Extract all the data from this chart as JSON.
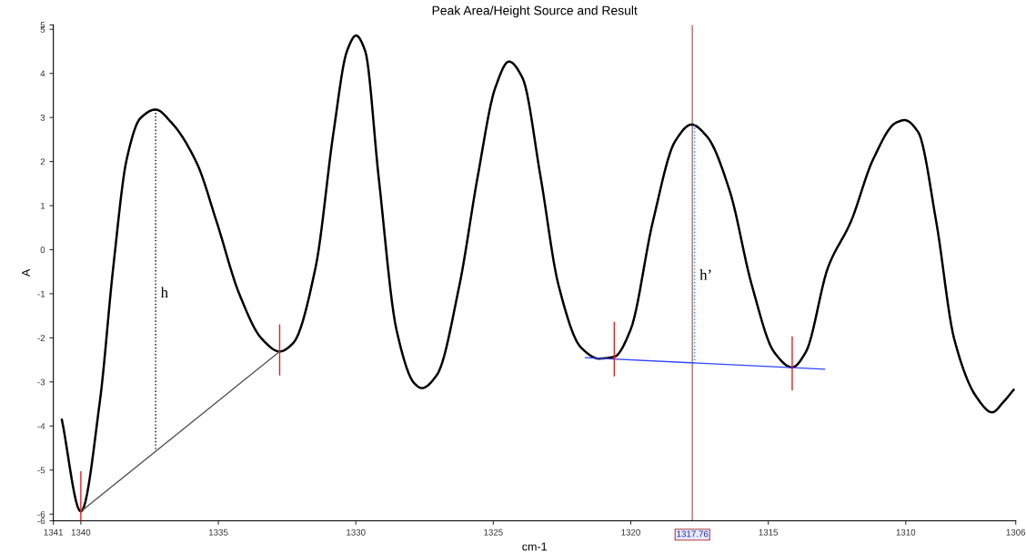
{
  "chart_data": {
    "type": "line",
    "title": "Peak Area/Height Source and Result",
    "xlabel": "cm-1",
    "ylabel": "A",
    "xlim": [
      1341,
      1306
    ],
    "xticks": [
      1341,
      1340,
      1335,
      1330,
      1325,
      1320,
      1315,
      1310,
      1306
    ],
    "ylim": [
      -6.15,
      5.1
    ],
    "yticks": [
      {
        "value": -6.15,
        "label": "-6"
      },
      -6,
      -5,
      -4,
      -3,
      -2,
      -1,
      0,
      1,
      2,
      3,
      4,
      5,
      {
        "value": 5.1,
        "label": "5"
      }
    ],
    "grid": false,
    "legend": false,
    "marker": "none",
    "series": [
      {
        "color": "#000000",
        "line_style": "solid",
        "x": [
          1340.69,
          1340,
          1339.31,
          1338.82,
          1338.33,
          1337.84,
          1337.28,
          1336.7,
          1335.78,
          1335.06,
          1334.24,
          1333.42,
          1332.77,
          1332.28,
          1331.46,
          1330.81,
          1330.32,
          1329.99,
          1329.66,
          1329.17,
          1328.52,
          1327.86,
          1327.6,
          1327.05,
          1326.23,
          1325.57,
          1324.92,
          1324.43,
          1323.94,
          1323.28,
          1322.63,
          1321.81,
          1321.16,
          1320.6,
          1320.01,
          1319.2,
          1318.38,
          1317.79,
          1317.23,
          1316.41,
          1315.6,
          1314.78,
          1314.13,
          1313.64,
          1312.82,
          1312.0,
          1311.18,
          1310.36,
          1310.04,
          1309.55,
          1308.89,
          1308.24,
          1307.42,
          1306.86,
          1306.44,
          1306.08
        ],
        "values": [
          -3.86,
          -5.94,
          -3.45,
          -0.39,
          2.06,
          2.98,
          3.18,
          2.88,
          1.96,
          0.63,
          -1.0,
          -2.02,
          -2.31,
          -2.12,
          -0.39,
          2.67,
          4.51,
          4.86,
          4.51,
          1.65,
          -1.82,
          -3.04,
          -3.14,
          -2.84,
          -0.8,
          1.65,
          3.69,
          4.27,
          3.9,
          1.65,
          -0.8,
          -2.22,
          -2.47,
          -2.43,
          -1.82,
          0.63,
          2.47,
          2.84,
          2.57,
          1.35,
          -0.8,
          -2.33,
          -2.67,
          -2.33,
          -0.39,
          0.63,
          2.06,
          2.88,
          2.94,
          2.67,
          0.63,
          -2.02,
          -3.35,
          -3.69,
          -3.45,
          -3.18
        ]
      },
      {
        "color": "#555555",
        "line_style": "solid",
        "x": [
          1340,
          1332.77
        ],
        "values": [
          -5.94,
          -2.31
        ]
      },
      {
        "color": "#000000",
        "line_style": "dotted",
        "x": [
          1337.28,
          1337.28
        ],
        "values": [
          3.18,
          -4.57
        ]
      },
      {
        "color": "#e02020",
        "line_style": "solid",
        "x": [
          1340,
          1340
        ],
        "values": [
          -5.04,
          -6.15
        ]
      },
      {
        "color": "#e02020",
        "line_style": "solid",
        "x": [
          1332.77,
          1332.77
        ],
        "values": [
          -1.71,
          -2.84
        ]
      },
      {
        "color": "#3344ff",
        "line_style": "solid",
        "x": [
          1321.65,
          1312.95
        ],
        "values": [
          -2.45,
          -2.71
        ]
      },
      {
        "color": "#1e90ff",
        "line_style": "dotted",
        "x": [
          1317.68,
          1317.68
        ],
        "values": [
          2.84,
          -2.58
        ]
      },
      {
        "color": "#e02020",
        "line_style": "solid",
        "x": [
          1320.6,
          1320.6
        ],
        "values": [
          -1.65,
          -2.86
        ]
      },
      {
        "color": "#e02020",
        "line_style": "solid",
        "x": [
          1314.13,
          1314.13
        ],
        "values": [
          -1.98,
          -3.18
        ]
      }
    ],
    "ref_lines": [
      {
        "axis": "x",
        "value": 1317.76,
        "label": "1317.76",
        "color": "#c08080",
        "line_style": "solid"
      }
    ],
    "annotations": [
      {
        "text": "h",
        "x": 1337.28,
        "y": -1.0
      },
      {
        "text": "h’",
        "x": 1317.68,
        "y": -0.6
      }
    ]
  }
}
